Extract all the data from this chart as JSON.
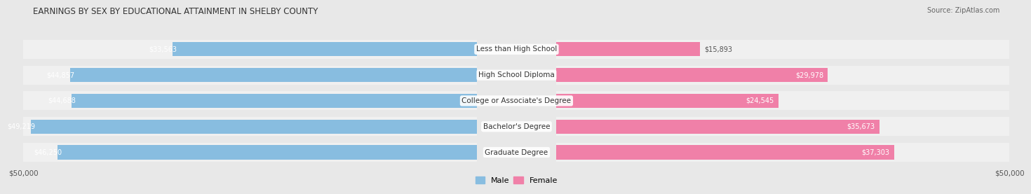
{
  "title": "EARNINGS BY SEX BY EDUCATIONAL ATTAINMENT IN SHELBY COUNTY",
  "source": "Source: ZipAtlas.com",
  "categories": [
    "Less than High School",
    "High School Diploma",
    "College or Associate's Degree",
    "Bachelor's Degree",
    "Graduate Degree"
  ],
  "male_values": [
    33563,
    44857,
    44688,
    49219,
    46250
  ],
  "female_values": [
    15893,
    29978,
    24545,
    35673,
    37303
  ],
  "male_color": "#88bde0",
  "female_color": "#f080a8",
  "max_val": 50000,
  "bg_color": "#e8e8e8",
  "row_bg_color": "#d8d8d8",
  "bar_bg_color": "#f0f0f0",
  "title_fontsize": 8.5,
  "source_fontsize": 7,
  "label_fontsize": 7.5,
  "value_fontsize": 7,
  "tick_fontsize": 7.5,
  "legend_fontsize": 8
}
